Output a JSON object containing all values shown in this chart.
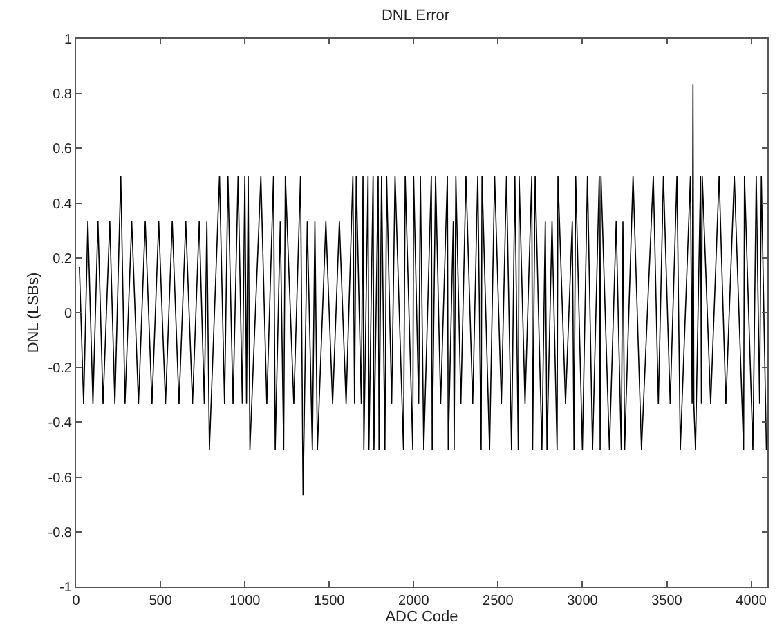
{
  "chart_data": {
    "type": "line",
    "title": "DNL Error",
    "xlabel": "ADC Code",
    "ylabel": "DNL (LSBs)",
    "xlim": [
      0,
      4096
    ],
    "ylim": [
      -1,
      1
    ],
    "xticks": [
      0,
      500,
      1000,
      1500,
      2000,
      2500,
      3000,
      3500,
      4000
    ],
    "yticks": [
      -1,
      -0.8,
      -0.6,
      -0.4,
      -0.2,
      0,
      0.2,
      0.4,
      0.6,
      0.8,
      1
    ],
    "marker": "none",
    "line_style": "solid",
    "series": [
      {
        "color": "#000000",
        "x": [
          20,
          45,
          70,
          100,
          130,
          160,
          200,
          230,
          265,
          290,
          330,
          370,
          410,
          450,
          490,
          530,
          570,
          610,
          650,
          690,
          730,
          760,
          775,
          790,
          850,
          880,
          900,
          930,
          960,
          985,
          1000,
          1010,
          1020,
          1030,
          1095,
          1130,
          1170,
          1180,
          1210,
          1230,
          1240,
          1290,
          1330,
          1345,
          1370,
          1400,
          1415,
          1430,
          1480,
          1520,
          1560,
          1600,
          1640,
          1650,
          1660,
          1690,
          1700,
          1705,
          1730,
          1735,
          1760,
          1765,
          1790,
          1795,
          1810,
          1830,
          1840,
          1870,
          1890,
          1940,
          1950,
          1995,
          2000,
          2030,
          2040,
          2060,
          2105,
          2110,
          2130,
          2160,
          2200,
          2205,
          2235,
          2240,
          2250,
          2280,
          2310,
          2350,
          2380,
          2400,
          2405,
          2450,
          2480,
          2520,
          2550,
          2580,
          2600,
          2620,
          2625,
          2660,
          2700,
          2705,
          2720,
          2760,
          2780,
          2790,
          2820,
          2850,
          2855,
          2900,
          2940,
          2950,
          2960,
          3000,
          3030,
          3060,
          3100,
          3105,
          3110,
          3160,
          3200,
          3230,
          3240,
          3250,
          3300,
          3350,
          3420,
          3450,
          3480,
          3520,
          3560,
          3580,
          3640,
          3650,
          3655,
          3660,
          3670,
          3700,
          3705,
          3710,
          3760,
          3810,
          3850,
          3900,
          3955,
          3960,
          4010,
          4030,
          4050,
          4060,
          4090
        ],
        "values": [
          0.167,
          -0.333,
          0.333,
          -0.333,
          0.333,
          -0.333,
          0.333,
          -0.333,
          0.5,
          -0.333,
          0.333,
          -0.333,
          0.333,
          -0.333,
          0.333,
          -0.333,
          0.333,
          -0.333,
          0.333,
          -0.333,
          0.333,
          -0.333,
          0.333,
          -0.5,
          0.5,
          -0.333,
          0.5,
          -0.333,
          0.5,
          -0.333,
          0.5,
          -0.333,
          0.5,
          -0.5,
          0.5,
          -0.333,
          0.5,
          -0.5,
          0.333,
          -0.5,
          0.5,
          -0.333,
          0.5,
          -0.667,
          0.333,
          -0.5,
          0.333,
          -0.5,
          0.333,
          -0.333,
          0.333,
          -0.333,
          0.5,
          -0.333,
          0.5,
          -0.333,
          0.5,
          -0.5,
          0.5,
          -0.5,
          0.5,
          -0.5,
          0.5,
          -0.5,
          0.5,
          -0.5,
          0.5,
          -0.333,
          0.5,
          -0.5,
          0.5,
          -0.5,
          0.5,
          -0.333,
          0.5,
          -0.5,
          0.5,
          -0.5,
          0.5,
          -0.333,
          0.5,
          -0.5,
          0.333,
          -0.5,
          0.5,
          -0.333,
          0.5,
          -0.333,
          0.5,
          -0.5,
          0.5,
          -0.5,
          0.5,
          -0.333,
          0.5,
          -0.5,
          0.5,
          -0.5,
          0.5,
          -0.333,
          0.5,
          -0.5,
          0.5,
          -0.5,
          0.333,
          -0.5,
          0.333,
          -0.5,
          0.5,
          -0.333,
          0.333,
          -0.5,
          0.5,
          -0.5,
          0.5,
          -0.5,
          0.5,
          -0.5,
          0.5,
          -0.5,
          0.333,
          -0.5,
          0.333,
          -0.5,
          0.5,
          -0.5,
          0.5,
          -0.333,
          0.5,
          -0.333,
          0.5,
          -0.5,
          0.5,
          -0.333,
          0.833,
          -0.333,
          -0.5,
          0.5,
          -0.333,
          0.5,
          -0.333,
          0.5,
          -0.333,
          0.5,
          -0.5,
          0.5,
          -0.5,
          0.5,
          -0.333,
          0.5,
          -0.5
        ]
      }
    ]
  }
}
